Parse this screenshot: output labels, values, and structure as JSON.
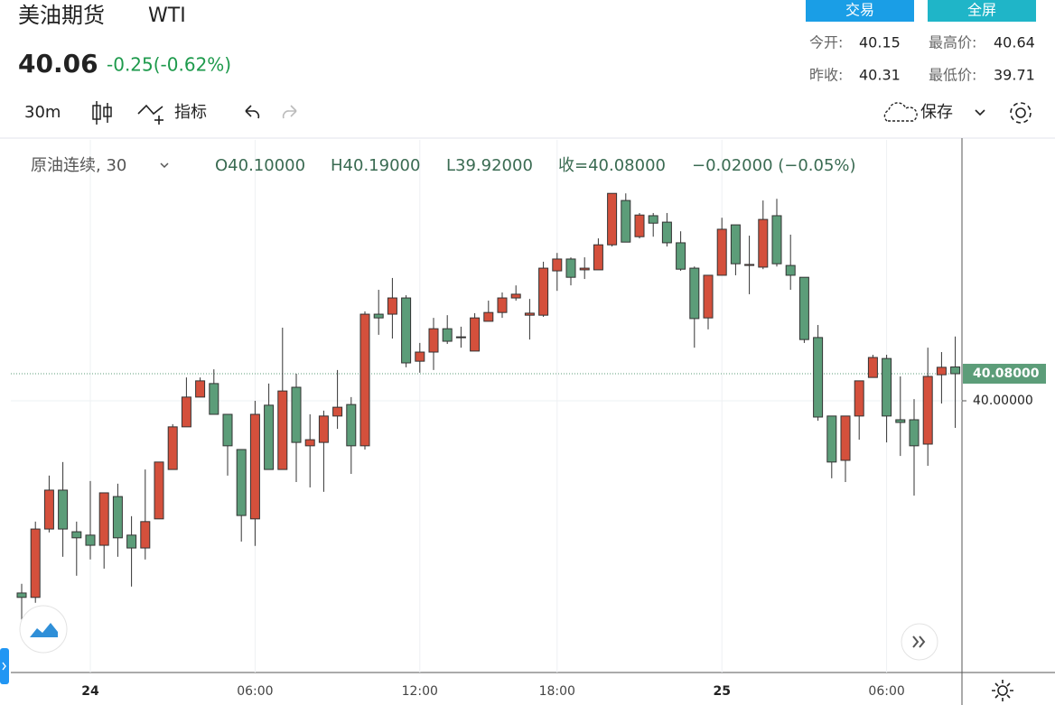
{
  "header": {
    "title": "美油期货",
    "symbol": "WTI",
    "price": "40.06",
    "change": "-0.25(-0.62%)"
  },
  "buttons": {
    "trade": "交易",
    "fullscreen": "全屏"
  },
  "stats": {
    "open_label": "今开:",
    "open": "40.15",
    "high_label": "最高价:",
    "high": "40.64",
    "prev_label": "昨收:",
    "prev": "40.31",
    "low_label": "最低价:",
    "low": "39.71"
  },
  "toolbar": {
    "interval": "30m",
    "indicators": "指标",
    "save": "保存"
  },
  "chart_data": {
    "type": "candlestick",
    "legend": {
      "symbol": "原油连续, 30",
      "open": "O40.10000",
      "high": "H40.19000",
      "low": "L39.92000",
      "close": "收=40.08000",
      "change": "−0.02000 (−0.05%)"
    },
    "categories": [
      null,
      null,
      null,
      null,
      null,
      "24",
      null,
      null,
      null,
      null,
      null,
      null,
      null,
      null,
      null,
      null,
      null,
      "06:00",
      null,
      null,
      null,
      null,
      null,
      null,
      null,
      null,
      null,
      null,
      null,
      "12:00",
      null,
      null,
      null,
      null,
      null,
      null,
      null,
      null,
      null,
      "18:00",
      null,
      null,
      null,
      null,
      null,
      null,
      null,
      null,
      null,
      null,
      null,
      "25",
      null,
      null,
      null,
      null,
      null,
      null,
      null,
      null,
      null,
      null,
      null,
      "06:00",
      null,
      null,
      null,
      null,
      null
    ],
    "open": [
      39.432,
      39.419,
      39.621,
      39.736,
      39.613,
      39.603,
      39.573,
      39.717,
      39.603,
      39.565,
      39.651,
      39.797,
      39.923,
      40.011,
      40.051,
      39.96,
      39.856,
      39.651,
      39.987,
      39.797,
      40.04,
      39.867,
      39.877,
      39.955,
      39.989,
      39.867,
      40.256,
      40.256,
      40.304,
      40.117,
      40.144,
      40.213,
      40.187,
      40.147,
      40.235,
      40.261,
      40.304,
      40.253,
      40.253,
      40.384,
      40.419,
      40.387,
      40.387,
      40.461,
      40.592,
      40.485,
      40.547,
      40.528,
      40.467,
      40.392,
      40.245,
      40.371,
      40.52,
      40.4,
      40.395,
      40.547,
      40.4,
      40.365,
      40.187,
      39.955,
      39.824,
      39.955,
      40.069,
      40.125,
      39.944,
      39.944,
      39.872,
      40.077,
      40.1
    ],
    "high": [
      39.459,
      39.643,
      39.779,
      39.819,
      39.643,
      39.763,
      39.728,
      39.755,
      39.659,
      39.797,
      39.819,
      39.931,
      40.069,
      40.069,
      40.093,
      39.96,
      39.856,
      40.0,
      40.051,
      40.216,
      40.08,
      39.96,
      39.971,
      40.091,
      40.011,
      40.264,
      40.328,
      40.363,
      40.312,
      40.171,
      40.245,
      40.253,
      40.219,
      40.259,
      40.296,
      40.32,
      40.341,
      40.301,
      40.411,
      40.437,
      40.424,
      40.424,
      40.48,
      40.613,
      40.613,
      40.555,
      40.555,
      40.555,
      40.501,
      40.397,
      40.371,
      40.541,
      40.52,
      40.488,
      40.592,
      40.597,
      40.491,
      40.365,
      40.224,
      39.955,
      39.955,
      40.059,
      40.136,
      40.136,
      40.072,
      40.005,
      40.157,
      40.144,
      40.19
    ],
    "low": [
      39.336,
      39.403,
      39.611,
      39.539,
      39.483,
      39.531,
      39.504,
      39.539,
      39.451,
      39.531,
      39.651,
      39.797,
      39.923,
      40.011,
      39.96,
      39.779,
      39.584,
      39.571,
      39.797,
      39.797,
      39.76,
      39.744,
      39.731,
      39.917,
      39.784,
      39.856,
      40.195,
      40.184,
      40.099,
      40.083,
      40.091,
      40.168,
      40.157,
      40.147,
      40.235,
      40.245,
      40.296,
      40.181,
      40.248,
      40.325,
      40.341,
      40.36,
      40.387,
      40.456,
      40.469,
      40.48,
      40.485,
      40.456,
      40.384,
      40.157,
      40.211,
      40.371,
      40.371,
      40.315,
      40.389,
      40.397,
      40.328,
      40.171,
      39.941,
      39.771,
      39.76,
      39.885,
      40.069,
      39.877,
      39.837,
      39.72,
      39.808,
      39.992,
      39.92
    ],
    "close": [
      39.419,
      39.621,
      39.736,
      39.621,
      39.595,
      39.573,
      39.728,
      39.595,
      39.565,
      39.643,
      39.819,
      39.923,
      40.011,
      40.059,
      39.96,
      39.867,
      39.661,
      39.96,
      39.797,
      40.029,
      39.877,
      39.885,
      39.955,
      39.981,
      39.867,
      40.256,
      40.245,
      40.304,
      40.112,
      40.144,
      40.213,
      40.176,
      40.189,
      40.245,
      40.261,
      40.304,
      40.315,
      40.259,
      40.392,
      40.419,
      40.365,
      40.392,
      40.461,
      40.613,
      40.469,
      40.549,
      40.525,
      40.467,
      40.389,
      40.243,
      40.371,
      40.507,
      40.405,
      40.403,
      40.536,
      40.405,
      40.371,
      40.181,
      39.952,
      39.819,
      39.955,
      40.059,
      40.128,
      39.955,
      39.936,
      39.867,
      40.072,
      40.099,
      40.08
    ],
    "up_color": "#d4503c",
    "down_color": "#5c9d79",
    "ylim": [
      39.197,
      40.771
    ],
    "yticks": [
      {
        "value": 40,
        "label": "40.00000"
      }
    ],
    "last_price": {
      "value": 40.08,
      "label": "40.08000"
    },
    "grid": true
  }
}
